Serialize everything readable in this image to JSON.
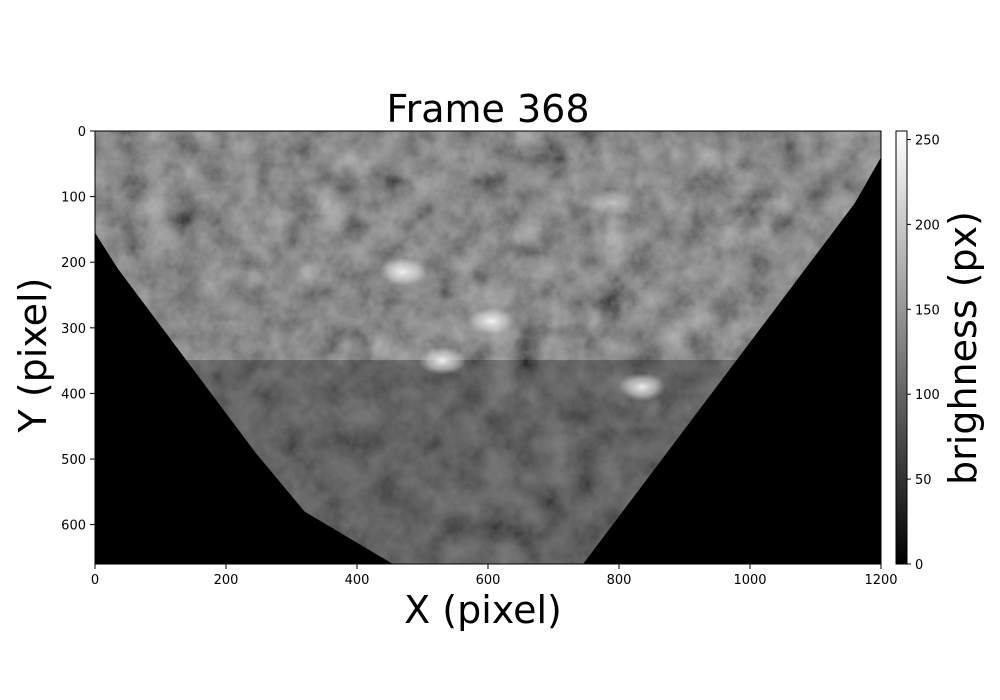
{
  "chart_data": {
    "type": "heatmap",
    "title": "Frame 368",
    "xlabel": "X (pixel)",
    "ylabel": "Y (pixel)",
    "xlim": [
      0,
      1200
    ],
    "ylim": [
      660,
      0
    ],
    "xticks": [
      0,
      200,
      400,
      600,
      800,
      1000,
      1200
    ],
    "yticks": [
      0,
      100,
      200,
      300,
      400,
      500,
      600
    ],
    "colorbar": {
      "label": "brighness (px)",
      "range": [
        0,
        255
      ],
      "ticks": [
        0,
        50,
        100,
        150,
        200,
        250
      ],
      "colormap": "gray"
    },
    "valid_region_polygon": [
      [
        0,
        0
      ],
      [
        1200,
        0
      ],
      [
        1200,
        40
      ],
      [
        1160,
        110
      ],
      [
        745,
        660
      ],
      [
        455,
        660
      ],
      [
        320,
        580
      ],
      [
        245,
        490
      ],
      [
        35,
        210
      ],
      [
        0,
        155
      ]
    ],
    "bright_features": [
      {
        "name": "upper-left cloud",
        "x": 470,
        "y": 215,
        "brightness": 230
      },
      {
        "name": "central cusp left",
        "x": 530,
        "y": 350,
        "brightness": 245
      },
      {
        "name": "central cusp right",
        "x": 605,
        "y": 290,
        "brightness": 245
      },
      {
        "name": "right crescent",
        "x": 835,
        "y": 390,
        "brightness": 235
      },
      {
        "name": "upper-right cloud",
        "x": 790,
        "y": 110,
        "brightness": 160
      }
    ],
    "colors": {
      "background_region": "#000000",
      "image_mid_tone": "#4a4a4a",
      "highlight": "#f4f4f4"
    }
  }
}
